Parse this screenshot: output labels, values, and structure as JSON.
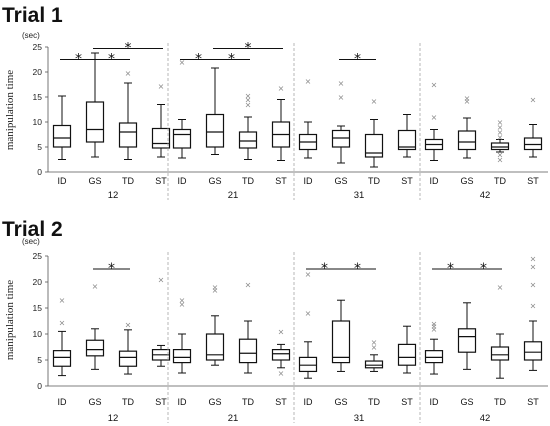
{
  "chart_data": [
    {
      "type": "boxplot",
      "title": "Trial 1",
      "unit": "(sec)",
      "ylabel": "manipulation time",
      "ylim": [
        0,
        25
      ],
      "yticks": [
        0,
        5,
        10,
        15,
        20,
        25
      ],
      "categories": [
        "ID",
        "GS",
        "TD",
        "ST"
      ],
      "groups": [
        {
          "name": "12",
          "boxes": [
            {
              "category": "ID",
              "min": 2.5,
              "q1": 5.0,
              "median": 6.8,
              "q3": 9.3,
              "max": 15.2,
              "outliers": []
            },
            {
              "category": "GS",
              "min": 3.0,
              "q1": 6.0,
              "median": 8.5,
              "q3": 14.0,
              "max": 23.8,
              "outliers": []
            },
            {
              "category": "TD",
              "min": 2.5,
              "q1": 5.0,
              "median": 8.0,
              "q3": 9.8,
              "max": 17.8,
              "outliers": [
                19.8
              ]
            },
            {
              "category": "ST",
              "min": 3.0,
              "q1": 4.8,
              "median": 5.7,
              "q3": 8.7,
              "max": 13.5,
              "outliers": [
                17.2
              ]
            }
          ],
          "significance": [
            {
              "from": "ID",
              "to": "GS",
              "label": "*",
              "y": 22.5
            },
            {
              "from": "GS",
              "to": "TD",
              "label": "*",
              "y": 22.5
            },
            {
              "from": "GS",
              "to": "ST",
              "label": "*",
              "y": 24.7
            }
          ]
        },
        {
          "name": "21",
          "boxes": [
            {
              "category": "ID",
              "min": 2.8,
              "q1": 4.8,
              "median": 7.5,
              "q3": 8.5,
              "max": 10.5,
              "outliers": [
                22.0
              ]
            },
            {
              "category": "GS",
              "min": 3.5,
              "q1": 5.0,
              "median": 8.0,
              "q3": 11.5,
              "max": 20.8,
              "outliers": []
            },
            {
              "category": "TD",
              "min": 2.5,
              "q1": 4.8,
              "median": 6.2,
              "q3": 8.0,
              "max": 11.0,
              "outliers": [
                13.5,
                14.5,
                15.3
              ]
            },
            {
              "category": "ST",
              "min": 2.3,
              "q1": 5.0,
              "median": 7.5,
              "q3": 10.0,
              "max": 14.5,
              "outliers": [
                16.8
              ]
            }
          ],
          "significance": [
            {
              "from": "ID",
              "to": "GS",
              "label": "*",
              "y": 22.5
            },
            {
              "from": "GS",
              "to": "TD",
              "label": "*",
              "y": 22.5
            },
            {
              "from": "GS",
              "to": "ST",
              "label": "*",
              "y": 24.7
            }
          ]
        },
        {
          "name": "31",
          "boxes": [
            {
              "category": "ID",
              "min": 2.8,
              "q1": 4.5,
              "median": 6.0,
              "q3": 7.5,
              "max": 10.0,
              "outliers": [
                18.2
              ]
            },
            {
              "category": "GS",
              "min": 1.8,
              "q1": 5.0,
              "median": 6.8,
              "q3": 8.3,
              "max": 9.2,
              "outliers": [
                15.0,
                17.8
              ]
            },
            {
              "category": "TD",
              "min": 1.0,
              "q1": 3.0,
              "median": 3.8,
              "q3": 7.5,
              "max": 10.5,
              "outliers": [
                14.2
              ]
            },
            {
              "category": "ST",
              "min": 3.0,
              "q1": 4.5,
              "median": 5.0,
              "q3": 8.3,
              "max": 11.5,
              "outliers": []
            }
          ],
          "significance": [
            {
              "from": "GS",
              "to": "TD",
              "label": "*",
              "y": 22.5
            }
          ]
        },
        {
          "name": "42",
          "boxes": [
            {
              "category": "ID",
              "min": 2.3,
              "q1": 4.5,
              "median": 5.5,
              "q3": 6.5,
              "max": 8.5,
              "outliers": [
                11.0,
                17.5
              ]
            },
            {
              "category": "GS",
              "min": 2.8,
              "q1": 4.5,
              "median": 6.0,
              "q3": 8.2,
              "max": 10.8,
              "outliers": [
                14.2,
                14.8
              ]
            },
            {
              "category": "TD",
              "min": 4.0,
              "q1": 4.5,
              "median": 5.0,
              "q3": 5.8,
              "max": 6.5,
              "outliers": [
                2.5,
                3.5,
                7.0,
                8.0,
                9.0,
                10.0
              ]
            },
            {
              "category": "ST",
              "min": 3.0,
              "q1": 4.5,
              "median": 5.5,
              "q3": 6.8,
              "max": 9.5,
              "outliers": [
                14.5
              ]
            }
          ],
          "significance": []
        }
      ]
    },
    {
      "type": "boxplot",
      "title": "Trial 2",
      "unit": "(sec)",
      "ylabel": "manipulation time",
      "ylim": [
        0,
        25
      ],
      "yticks": [
        0,
        5,
        10,
        15,
        20,
        25
      ],
      "categories": [
        "ID",
        "GS",
        "TD",
        "ST"
      ],
      "groups": [
        {
          "name": "12",
          "boxes": [
            {
              "category": "ID",
              "min": 2.0,
              "q1": 3.8,
              "median": 5.5,
              "q3": 6.8,
              "max": 10.5,
              "outliers": [
                12.2,
                16.5
              ]
            },
            {
              "category": "GS",
              "min": 3.2,
              "q1": 5.8,
              "median": 7.0,
              "q3": 8.8,
              "max": 11.0,
              "outliers": [
                19.2
              ]
            },
            {
              "category": "TD",
              "min": 2.3,
              "q1": 3.8,
              "median": 5.5,
              "q3": 6.7,
              "max": 10.8,
              "outliers": [
                11.8
              ]
            },
            {
              "category": "ST",
              "min": 3.8,
              "q1": 5.0,
              "median": 6.0,
              "q3": 7.0,
              "max": 7.8,
              "outliers": [
                20.5
              ]
            }
          ],
          "significance": [
            {
              "from": "GS",
              "to": "TD",
              "label": "*",
              "y": 22.5
            }
          ]
        },
        {
          "name": "21",
          "boxes": [
            {
              "category": "ID",
              "min": 2.5,
              "q1": 4.5,
              "median": 5.5,
              "q3": 7.0,
              "max": 10.0,
              "outliers": [
                15.8,
                16.5
              ]
            },
            {
              "category": "GS",
              "min": 4.0,
              "q1": 5.0,
              "median": 6.0,
              "q3": 10.0,
              "max": 13.5,
              "outliers": [
                18.5,
                19.0
              ]
            },
            {
              "category": "TD",
              "min": 2.5,
              "q1": 4.5,
              "median": 6.3,
              "q3": 9.0,
              "max": 12.5,
              "outliers": [
                19.5
              ]
            },
            {
              "category": "ST",
              "min": 3.5,
              "q1": 5.0,
              "median": 6.2,
              "q3": 7.0,
              "max": 8.0,
              "outliers": [
                2.5,
                10.5
              ]
            }
          ],
          "significance": []
        },
        {
          "name": "31",
          "boxes": [
            {
              "category": "ID",
              "min": 1.5,
              "q1": 2.8,
              "median": 4.0,
              "q3": 5.5,
              "max": 8.5,
              "outliers": [
                14.0,
                21.5
              ]
            },
            {
              "category": "GS",
              "min": 2.8,
              "q1": 4.5,
              "median": 5.5,
              "q3": 12.5,
              "max": 16.5,
              "outliers": []
            },
            {
              "category": "TD",
              "min": 2.8,
              "q1": 3.5,
              "median": 4.0,
              "q3": 4.8,
              "max": 6.0,
              "outliers": [
                7.5,
                8.5
              ]
            },
            {
              "category": "ST",
              "min": 2.5,
              "q1": 4.0,
              "median": 5.5,
              "q3": 8.0,
              "max": 11.5,
              "outliers": []
            }
          ],
          "significance": [
            {
              "from": "ID",
              "to": "GS",
              "label": "*",
              "y": 22.5
            },
            {
              "from": "GS",
              "to": "TD",
              "label": "*",
              "y": 22.5
            }
          ]
        },
        {
          "name": "42",
          "boxes": [
            {
              "category": "ID",
              "min": 2.3,
              "q1": 4.5,
              "median": 5.5,
              "q3": 6.8,
              "max": 9.0,
              "outliers": [
                11.0,
                11.5,
                12.0
              ]
            },
            {
              "category": "GS",
              "min": 3.2,
              "q1": 6.5,
              "median": 9.5,
              "q3": 11.0,
              "max": 16.0,
              "outliers": []
            },
            {
              "category": "TD",
              "min": 1.5,
              "q1": 5.0,
              "median": 6.0,
              "q3": 7.5,
              "max": 10.0,
              "outliers": [
                19.0
              ]
            },
            {
              "category": "ST",
              "min": 3.0,
              "q1": 5.0,
              "median": 6.5,
              "q3": 8.5,
              "max": 12.5,
              "outliers": [
                15.5,
                19.5,
                23.0,
                24.5
              ]
            }
          ],
          "significance": [
            {
              "from": "ID",
              "to": "GS",
              "label": "*",
              "y": 22.5
            },
            {
              "from": "GS",
              "to": "TD",
              "label": "*",
              "y": 22.5
            }
          ]
        }
      ]
    }
  ]
}
